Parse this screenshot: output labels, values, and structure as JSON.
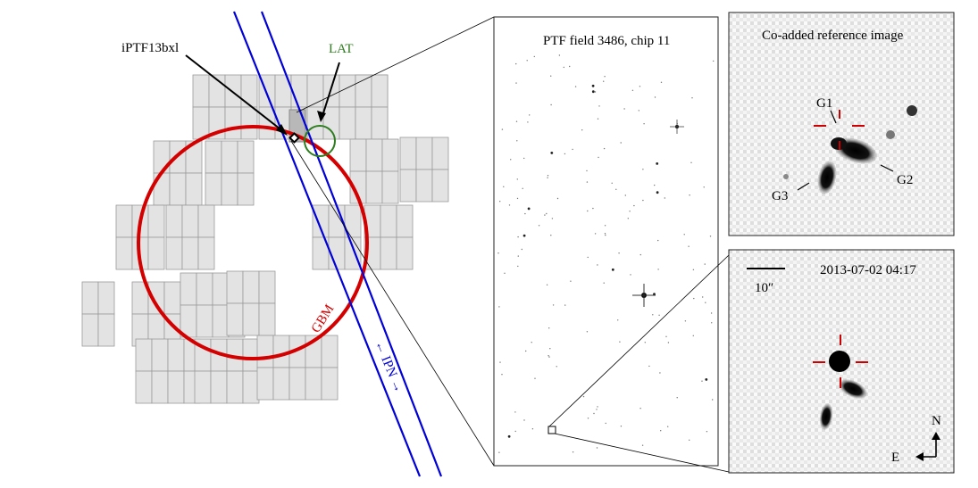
{
  "sky_map": {
    "transient_label": "iPTF13bxl",
    "lat_label": "LAT",
    "gbm_label": "GBM",
    "ipn_label": "← IPN →",
    "colors": {
      "gbm": "#d40000",
      "ipn": "#0000d8",
      "lat": "#2e7d1e",
      "tile_fill": "#e3e3e3",
      "tile_stroke": "#9a9a9a",
      "highlight_tile": "#b8b8b8"
    }
  },
  "field_panel": {
    "title": "PTF field 3486, chip 11"
  },
  "reference_panel": {
    "title": "Co-added reference image",
    "galaxy_labels": [
      "G1",
      "G2",
      "G3"
    ]
  },
  "discovery_panel": {
    "timestamp": "2013-07-02 04:17",
    "scale_label": "10″",
    "compass_north": "N",
    "compass_east": "E",
    "marker_color": "#cc0000"
  }
}
